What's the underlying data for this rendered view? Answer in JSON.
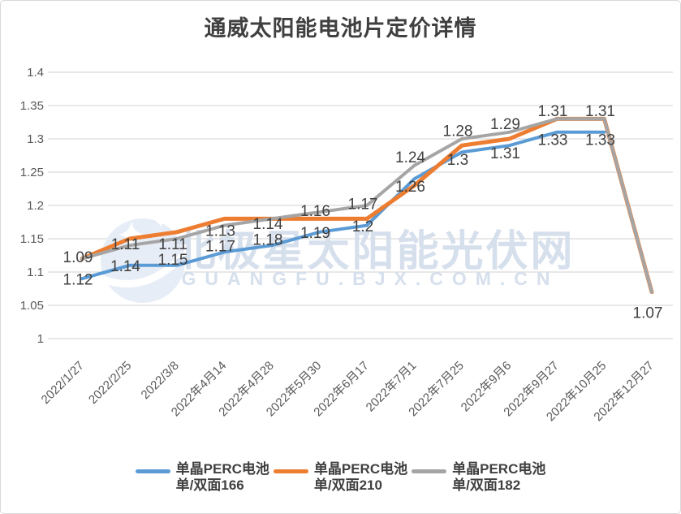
{
  "chart_data": {
    "type": "line",
    "title": "通威太阳能电池片定价详情",
    "categories": [
      "2022/1/27",
      "2022/2/25",
      "2022/3/8",
      "2022年4月14",
      "2022年4月28",
      "2022年5月30",
      "2022年6月17",
      "2022年7月1",
      "2022年7月25",
      "2022年9月6",
      "2022年9月27",
      "2022年10月25",
      "2022年12月27"
    ],
    "y_axis": {
      "min": 1,
      "max": 1.4,
      "step": 0.05,
      "tick_labels": [
        "1",
        "1.05",
        "1.1",
        "1.15",
        "1.2",
        "1.25",
        "1.3",
        "1.35",
        "1.4"
      ]
    },
    "grid": true,
    "legend_position": "bottom",
    "series": [
      {
        "id": "166",
        "name_line1": "单晶PERC电池",
        "name_line2": "单/双面166",
        "color": "#5B9BD5",
        "values": [
          1.09,
          1.11,
          1.11,
          1.13,
          1.14,
          1.16,
          1.17,
          1.24,
          1.28,
          1.29,
          1.31,
          1.31,
          null
        ],
        "data_labels": [
          "1.09",
          "1.11",
          "1.11",
          "1.13",
          "1.14",
          "1.16",
          "1.17",
          "1.24",
          "1.28",
          "1.29",
          "1.31",
          "1.31",
          ""
        ],
        "label_position": "above"
      },
      {
        "id": "210",
        "name_line1": "单晶PERC电池",
        "name_line2": "单/双面210",
        "color": "#ED7D31",
        "values": [
          1.12,
          1.15,
          1.16,
          1.18,
          1.18,
          1.18,
          1.18,
          1.23,
          1.29,
          1.3,
          1.33,
          1.33,
          1.07
        ],
        "data_labels": [],
        "label_position": "none"
      },
      {
        "id": "182",
        "name_line1": "单晶PERC电池",
        "name_line2": "单/双面182",
        "color": "#A5A5A5",
        "values": [
          1.12,
          1.14,
          1.15,
          1.17,
          1.18,
          1.19,
          1.2,
          1.26,
          1.3,
          1.31,
          1.33,
          1.33,
          1.07
        ],
        "data_labels": [
          "1.12",
          "1.14",
          "1.15",
          "1.17",
          "1.18",
          "1.19",
          "1.2",
          "1.26",
          "1.3",
          "1.31",
          "1.33",
          "1.33",
          "1.07"
        ],
        "label_position": "below"
      }
    ]
  },
  "watermark": {
    "line1": "北极星太阳能光伏网",
    "line2": "GUANGFU.BJX.COM.CN"
  },
  "style_colors": {
    "gridline": "#D9D9D9",
    "axis_text": "#595959",
    "data_label_text": "#404040",
    "title_text": "#404040",
    "watermark_text": "#D6DFEC",
    "watermark_logo": "#E7EDF6",
    "frame_border": "#D9D9D9"
  }
}
